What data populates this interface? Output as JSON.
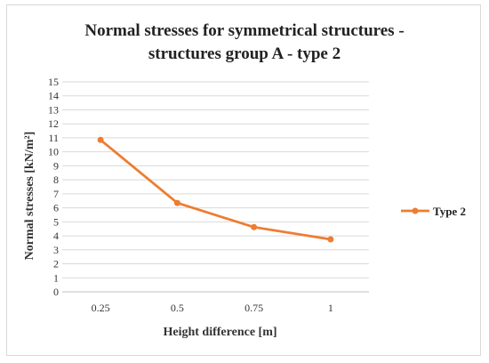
{
  "chart_data": {
    "type": "line",
    "title_line1": "Normal stresses  for symmetrical structures -",
    "title_line2": "structures group A - type 2",
    "xlabel": "Height difference [m]",
    "ylabel": "Normal stresses [kN/m²]",
    "categories": [
      "0.25",
      "0.5",
      "0.75",
      "1"
    ],
    "series": [
      {
        "name": "Type 2",
        "values": [
          10.85,
          6.35,
          4.62,
          3.75
        ]
      }
    ],
    "ylim": [
      0,
      15
    ],
    "yticks": [
      0,
      1,
      2,
      3,
      4,
      5,
      6,
      7,
      8,
      9,
      10,
      11,
      12,
      13,
      14,
      15
    ],
    "grid": true,
    "legend_position": "right",
    "colors": {
      "line": "#ed7d31",
      "grid": "#d9d9d9",
      "axis": "#bfbfbf"
    }
  }
}
